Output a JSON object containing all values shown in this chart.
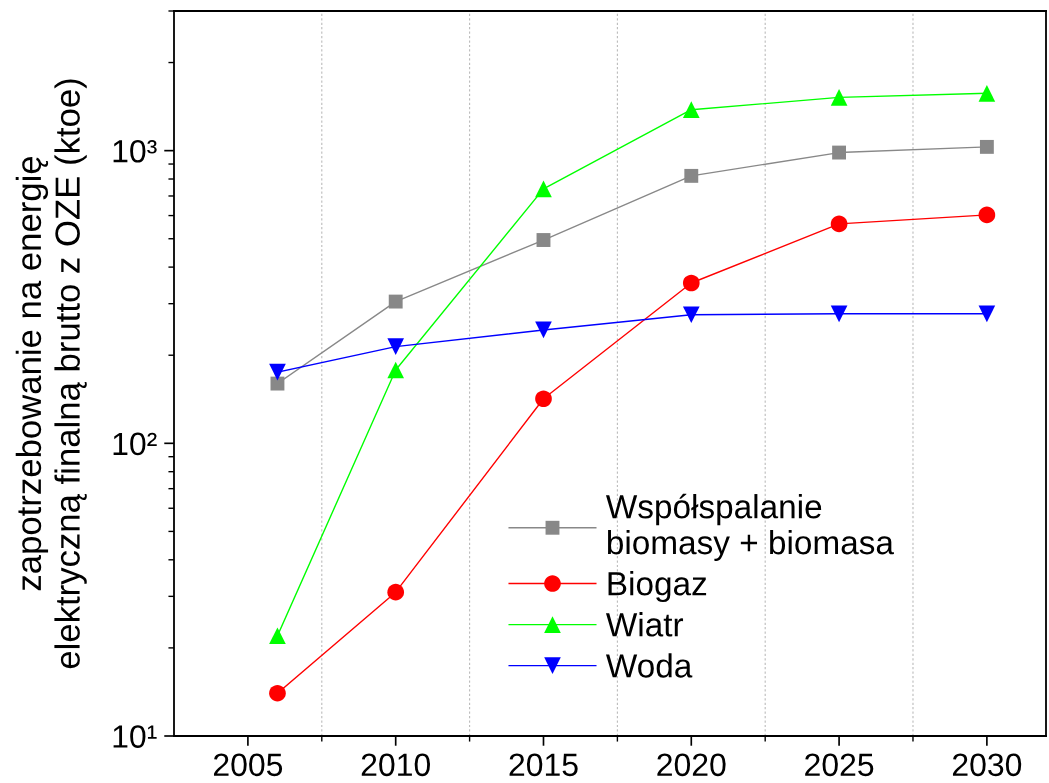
{
  "chart_data": {
    "type": "line",
    "ylabel": "zapotrzebowanie na energię\nelektryczną finalną brutto z OZE (ktoe)",
    "x": [
      2006,
      2010,
      2015,
      2020,
      2025,
      2030
    ],
    "series": [
      {
        "name": "Współspalanie\nbiomasy + biomasa",
        "color": "#888888",
        "marker": "square",
        "values": [
          160,
          305,
          495,
          820,
          985,
          1030
        ]
      },
      {
        "name": "Biogaz",
        "color": "#ff0000",
        "marker": "circle",
        "values": [
          14,
          31,
          142,
          353,
          562,
          603
        ]
      },
      {
        "name": "Wiatr",
        "color": "#00ff00",
        "marker": "triangle",
        "values": [
          22,
          178,
          740,
          1380,
          1520,
          1570
        ]
      },
      {
        "name": "Woda",
        "color": "#0000ff",
        "marker": "triangle_down",
        "values": [
          175,
          214,
          244,
          275,
          277,
          277
        ]
      }
    ],
    "log": "y",
    "xlim": [
      2002.5,
      2032
    ],
    "xticks": [
      2005,
      {
        "value": 2007.5,
        "label": null
      },
      2010,
      {
        "value": 2012.5,
        "label": null
      },
      2015,
      {
        "value": 2017.5,
        "label": null
      },
      2020,
      {
        "value": 2022.5,
        "label": null
      },
      2025,
      {
        "value": 2027.5,
        "label": null
      },
      2030
    ],
    "ylim": [
      10,
      3000
    ],
    "yticks": [
      {
        "value": 10,
        "label": "10¹"
      },
      {
        "value": 20,
        "label": null
      },
      {
        "value": 30,
        "label": null
      },
      {
        "value": 40,
        "label": null
      },
      {
        "value": 50,
        "label": null
      },
      {
        "value": 60,
        "label": null
      },
      {
        "value": 70,
        "label": null
      },
      {
        "value": 80,
        "label": null
      },
      {
        "value": 90,
        "label": null
      },
      {
        "value": 100,
        "label": "10²"
      },
      {
        "value": 200,
        "label": null
      },
      {
        "value": 300,
        "label": null
      },
      {
        "value": 400,
        "label": null
      },
      {
        "value": 500,
        "label": null
      },
      {
        "value": 600,
        "label": null
      },
      {
        "value": 700,
        "label": null
      },
      {
        "value": 800,
        "label": null
      },
      {
        "value": 900,
        "label": null
      },
      {
        "value": 1000,
        "label": "10³"
      },
      {
        "value": 2000,
        "label": null
      },
      {
        "value": 3000,
        "label": null
      }
    ],
    "grid": "x",
    "legend": "bottom right"
  }
}
